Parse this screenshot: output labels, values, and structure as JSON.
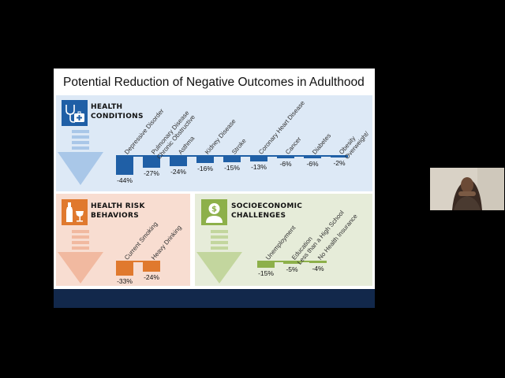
{
  "slide": {
    "title": "Potential Reduction of Negative Outcomes in Adulthood",
    "health": {
      "heading_line1": "HEALTH",
      "heading_line2": "CONDITIONS",
      "icon": "stethoscope-medkit-icon",
      "color": "#1f5fa6",
      "items": [
        {
          "label_lines": [
            "Depressive Disorder"
          ],
          "value": -44,
          "label": "-44%"
        },
        {
          "label_lines": [
            "Chronic Obstructive",
            "Pulmonary Disease"
          ],
          "value": -27,
          "label": "-27%"
        },
        {
          "label_lines": [
            "Asthma"
          ],
          "value": -24,
          "label": "-24%"
        },
        {
          "label_lines": [
            "Kidney Disease"
          ],
          "value": -16,
          "label": "-16%"
        },
        {
          "label_lines": [
            "Stroke"
          ],
          "value": -15,
          "label": "-15%"
        },
        {
          "label_lines": [
            "Coronary Heart Disease"
          ],
          "value": -13,
          "label": "-13%"
        },
        {
          "label_lines": [
            "Cancer"
          ],
          "value": -6,
          "label": "-6%"
        },
        {
          "label_lines": [
            "Diabetes"
          ],
          "value": -6,
          "label": "-6%"
        },
        {
          "label_lines": [
            "Overweight/",
            "Obesity"
          ],
          "value": -2,
          "label": "-2%"
        }
      ]
    },
    "risk": {
      "heading_line1": "HEALTH RISK",
      "heading_line2": "BEHAVIORS",
      "icon": "bottle-glass-icon",
      "color": "#e0792e",
      "items": [
        {
          "label_lines": [
            "Current Smoking"
          ],
          "value": -33,
          "label": "-33%"
        },
        {
          "label_lines": [
            "Heavy Drinking"
          ],
          "value": -24,
          "label": "-24%"
        }
      ]
    },
    "socio": {
      "heading_line1": "SOCIOECONOMIC",
      "heading_line2": "CHALLENGES",
      "icon": "money-person-icon",
      "color": "#8db04a",
      "items": [
        {
          "label_lines": [
            "Unemployment"
          ],
          "value": -15,
          "label": "-15%"
        },
        {
          "label_lines": [
            "Less than a High School",
            "Education"
          ],
          "value": -5,
          "label": "-5%"
        },
        {
          "label_lines": [
            "No Health Insurance"
          ],
          "value": -4,
          "label": "-4%"
        }
      ]
    }
  },
  "colors": {
    "health_bg": "#dde9f6",
    "risk_bg": "#f8ddd1",
    "socio_bg": "#e6ecd9",
    "footer": "#12284b"
  }
}
